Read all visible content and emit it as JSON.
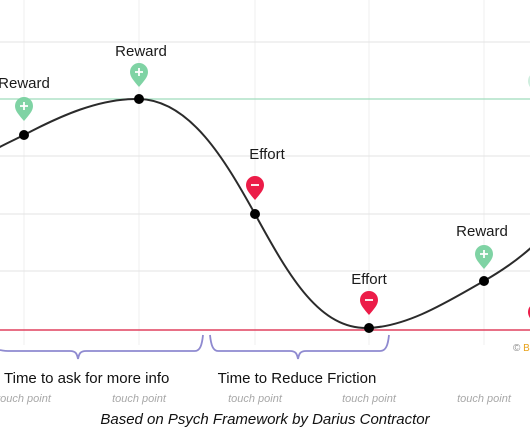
{
  "diagram": {
    "colors": {
      "curve": "#2b2b2b",
      "reward": "#7fd3a4",
      "effort": "#ec1c48",
      "upper_line": "#9fdcbc",
      "lower_line": "#e0405e",
      "bracket": "#8f8ad0",
      "grid": "#e6e6e6",
      "touch_point": "#a8a8a8"
    },
    "markers": [
      {
        "kind": "reward",
        "label": "Reward",
        "icon": "plus-pin-icon"
      },
      {
        "kind": "reward",
        "label": "Reward",
        "icon": "plus-pin-icon"
      },
      {
        "kind": "effort",
        "label": "Effort",
        "icon": "minus-pin-icon"
      },
      {
        "kind": "effort",
        "label": "Effort",
        "icon": "minus-pin-icon"
      },
      {
        "kind": "reward",
        "label": "Reward",
        "icon": "plus-pin-icon"
      }
    ],
    "ranges": [
      {
        "label": "Time to ask for more info"
      },
      {
        "label": "Time to Reduce Friction"
      }
    ],
    "touch_points": [
      "touch point",
      "touch point",
      "touch point",
      "touch point",
      "touch point"
    ],
    "credit_prefix": "©",
    "credit_letter": "B",
    "caption": "Based on Psych Framework by Darius Contractor"
  }
}
